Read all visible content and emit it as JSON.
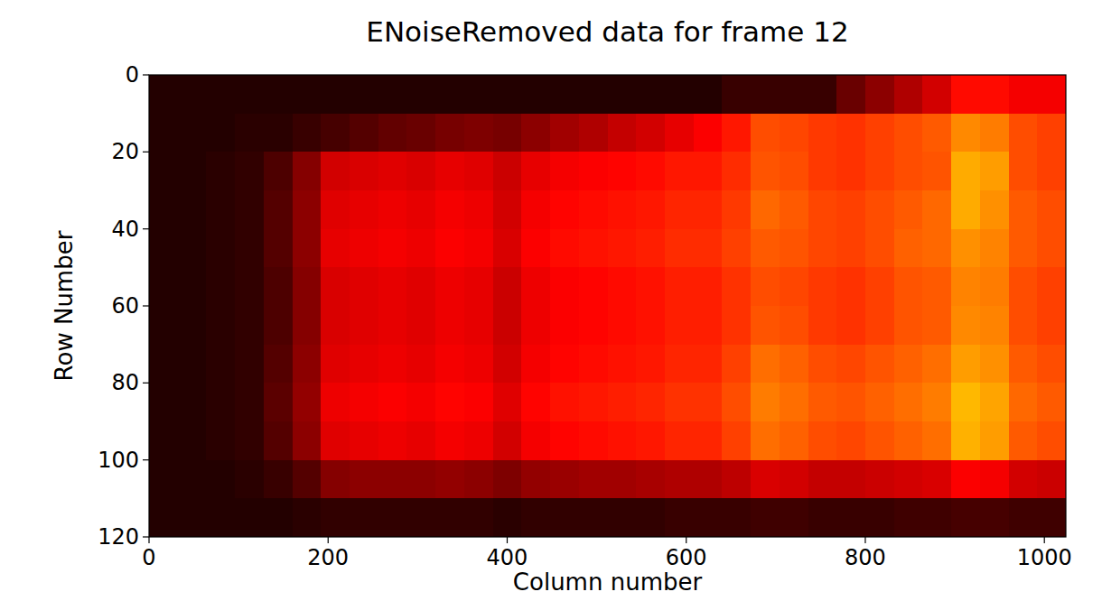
{
  "chart_data": {
    "type": "heatmap",
    "title": "ENoiseRemoved data for frame 12",
    "x_label": "Column number",
    "y_label": "Row Number",
    "xlim": [
      0,
      1024
    ],
    "ylim": [
      0,
      120
    ],
    "xticks": [
      0,
      200,
      400,
      600,
      800,
      1000
    ],
    "yticks": [
      0,
      20,
      40,
      60,
      80,
      100,
      120
    ],
    "x_edges": [
      0,
      32,
      64,
      96,
      128,
      160,
      192,
      224,
      256,
      288,
      320,
      352,
      384,
      416,
      448,
      480,
      512,
      544,
      576,
      608,
      640,
      672,
      704,
      736,
      768,
      800,
      832,
      864,
      896,
      928,
      960,
      992,
      1024
    ],
    "y_edges": [
      0,
      10,
      20,
      30,
      40,
      50,
      60,
      70,
      80,
      90,
      100,
      110,
      120
    ],
    "color_range": [
      0,
      100
    ],
    "cells": [
      [
        5,
        5,
        5,
        5,
        5,
        5,
        5,
        5,
        5,
        5,
        5,
        5,
        5,
        5,
        5,
        5,
        5,
        5,
        5,
        5,
        8,
        8,
        8,
        8,
        15,
        20,
        25,
        30,
        38,
        38,
        35,
        35
      ],
      [
        5,
        5,
        5,
        6,
        6,
        8,
        10,
        12,
        14,
        15,
        17,
        18,
        17,
        20,
        23,
        25,
        28,
        30,
        33,
        36,
        40,
        48,
        47,
        45,
        44,
        46,
        48,
        50,
        57,
        55,
        48,
        46
      ],
      [
        5,
        5,
        6,
        7,
        11,
        19,
        30,
        31,
        32,
        31,
        33,
        32,
        29,
        33,
        35,
        36,
        37,
        38,
        40,
        40,
        43,
        49,
        48,
        45,
        44,
        46,
        48,
        49,
        62,
        60,
        48,
        46
      ],
      [
        5,
        5,
        6,
        7,
        12,
        20,
        32,
        33,
        34,
        33,
        35,
        34,
        30,
        35,
        37,
        38,
        39,
        40,
        42,
        42,
        45,
        52,
        50,
        47,
        46,
        48,
        50,
        52,
        62,
        58,
        50,
        48
      ],
      [
        5,
        5,
        6,
        7,
        12,
        20,
        33,
        34,
        35,
        34,
        36,
        35,
        31,
        36,
        38,
        39,
        40,
        41,
        43,
        43,
        46,
        50,
        49,
        47,
        46,
        48,
        51,
        52,
        58,
        56,
        50,
        48
      ],
      [
        5,
        5,
        6,
        7,
        11,
        19,
        31,
        32,
        33,
        32,
        34,
        33,
        29,
        34,
        36,
        37,
        38,
        39,
        41,
        41,
        44,
        48,
        47,
        45,
        44,
        46,
        49,
        50,
        56,
        55,
        48,
        46
      ],
      [
        5,
        5,
        6,
        7,
        11,
        19,
        31,
        32,
        33,
        32,
        34,
        33,
        29,
        34,
        36,
        37,
        38,
        39,
        41,
        41,
        44,
        49,
        48,
        45,
        44,
        46,
        49,
        50,
        57,
        56,
        48,
        46
      ],
      [
        5,
        5,
        6,
        7,
        12,
        20,
        32,
        33,
        34,
        33,
        35,
        34,
        30,
        35,
        37,
        38,
        39,
        40,
        42,
        42,
        46,
        53,
        51,
        48,
        47,
        49,
        51,
        53,
        60,
        58,
        50,
        48
      ],
      [
        5,
        5,
        6,
        7,
        13,
        21,
        34,
        35,
        36,
        35,
        37,
        36,
        32,
        37,
        39,
        40,
        41,
        42,
        44,
        44,
        48,
        55,
        53,
        50,
        49,
        51,
        53,
        55,
        64,
        61,
        52,
        50
      ],
      [
        5,
        5,
        6,
        7,
        12,
        20,
        32,
        33,
        34,
        33,
        35,
        34,
        30,
        35,
        37,
        38,
        39,
        40,
        42,
        42,
        46,
        53,
        51,
        48,
        47,
        49,
        51,
        53,
        63,
        60,
        50,
        48
      ],
      [
        5,
        5,
        5,
        6,
        8,
        12,
        19,
        20,
        20,
        20,
        21,
        20,
        18,
        21,
        22,
        23,
        23,
        24,
        25,
        25,
        27,
        31,
        30,
        28,
        28,
        29,
        30,
        31,
        36,
        35,
        30,
        29
      ],
      [
        5,
        5,
        5,
        5,
        5,
        6,
        7,
        7,
        7,
        7,
        7,
        7,
        6,
        7,
        7,
        7,
        7,
        7,
        8,
        8,
        8,
        9,
        9,
        8,
        8,
        8,
        9,
        9,
        10,
        10,
        9,
        9
      ]
    ]
  }
}
